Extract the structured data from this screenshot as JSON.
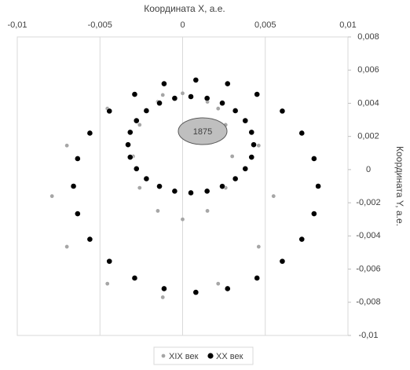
{
  "chart_data": {
    "type": "scatter",
    "x_label": "Координата X, а.е.",
    "y_label": "Координата Y, а.е.",
    "annotation": "1875",
    "xlim": [
      -0.01,
      0.01
    ],
    "ylim": [
      -0.01,
      0.008
    ],
    "xticks": [
      {
        "value": -0.01,
        "label": "-0,01"
      },
      {
        "value": -0.005,
        "label": "-0,005"
      },
      0,
      {
        "value": 0.005,
        "label": "0,005"
      },
      {
        "value": 0.01,
        "label": "0,01"
      }
    ],
    "yticks": [
      {
        "value": 0.008,
        "label": "0,008"
      },
      {
        "value": 0.006,
        "label": "0,006"
      },
      {
        "value": 0.004,
        "label": "0,004"
      },
      {
        "value": 0.002,
        "label": "0,002"
      },
      0,
      {
        "value": -0.002,
        "label": "-0,002"
      },
      {
        "value": -0.004,
        "label": "-0,004"
      },
      {
        "value": -0.006,
        "label": "-0,006"
      },
      {
        "value": -0.008,
        "label": "-0,008"
      },
      {
        "value": -0.01,
        "label": "-0,01"
      }
    ],
    "grid": true,
    "legend": "bottom",
    "series": [
      {
        "name": "XIX век",
        "color": "#a6a6a6",
        "x": [
          0.0055,
          0.0046,
          0.00215,
          -0.0012,
          -0.00455,
          -0.007,
          -0.0079,
          -0.007,
          -0.00455,
          -0.0012,
          0.00215,
          0.0046,
          0.003,
          0.0026,
          0.0015,
          0,
          -0.0015,
          -0.0026,
          -0.003,
          -0.0026,
          -0.0015,
          0,
          0.0015,
          0.0026
        ],
        "y": [
          -0.0016,
          0.00145,
          0.00368,
          0.0045,
          0.00368,
          0.00145,
          -0.0016,
          -0.00465,
          -0.00688,
          -0.0077,
          -0.00688,
          -0.00465,
          0.0008,
          0.0027,
          0.00409,
          0.0046,
          0.00409,
          0.0027,
          0.0008,
          -0.0011,
          -0.00249,
          -0.003,
          -0.00249,
          -0.0011
        ]
      },
      {
        "name": "XX век",
        "color": "#000000",
        "x": [
          0.0082,
          0.00795,
          0.00721,
          0.00603,
          0.0045,
          0.00272,
          0.0008,
          -0.00112,
          -0.0029,
          -0.00443,
          -0.00561,
          -0.00635,
          -0.0066,
          -0.00635,
          -0.00561,
          -0.00443,
          -0.0029,
          -0.00112,
          0.0008,
          0.00272,
          0.0045,
          0.00603,
          0.00721,
          0.00795,
          0.0043,
          0.00417,
          0.00379,
          0.00319,
          0.0024,
          0.00148,
          0.0005,
          -0.00048,
          -0.0014,
          -0.00219,
          -0.00279,
          -0.00317,
          -0.0033,
          -0.00317,
          -0.00279,
          -0.00219,
          -0.0014,
          -0.00048,
          0.0005,
          0.00148,
          0.0024,
          0.00319,
          0.00379,
          0.00417
        ],
        "y": [
          -0.001,
          0.00066,
          0.0022,
          0.00353,
          0.00454,
          0.00518,
          0.0054,
          0.00518,
          0.00454,
          0.00353,
          0.0022,
          0.00066,
          -0.001,
          -0.00266,
          -0.0042,
          -0.00553,
          -0.00654,
          -0.00718,
          -0.0074,
          -0.00718,
          -0.00654,
          -0.00553,
          -0.0042,
          -0.00266,
          0.0015,
          0.00225,
          0.00295,
          0.00355,
          0.00401,
          0.0043,
          0.0044,
          0.0043,
          0.00401,
          0.00355,
          0.00295,
          0.00225,
          0.0015,
          0.00075,
          5e-05,
          -0.00055,
          -0.00101,
          -0.0013,
          -0.0014,
          -0.0013,
          -0.00101,
          -0.00055,
          5e-05,
          0.00075
        ]
      }
    ]
  }
}
